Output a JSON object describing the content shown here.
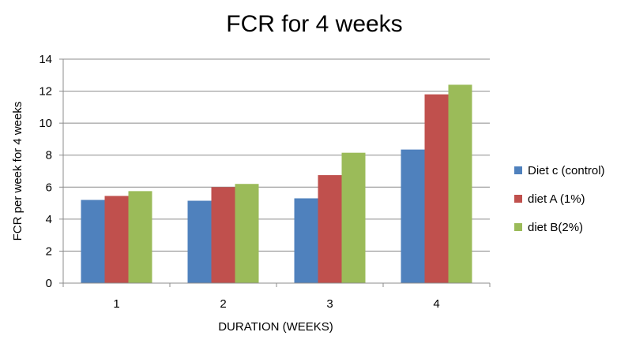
{
  "chart_data": {
    "type": "bar",
    "title": "FCR for 4 weeks",
    "xlabel": "DURATION (WEEKS)",
    "ylabel": "FCR per  week for 4 weeks",
    "categories": [
      "1",
      "2",
      "3",
      "4"
    ],
    "ylim": [
      0,
      14
    ],
    "ytick_step": 2,
    "grid": true,
    "legend_position": "right",
    "series": [
      {
        "name": "Diet c (control)",
        "color": "#4f81bd",
        "values": [
          5.2,
          5.15,
          5.3,
          8.35
        ]
      },
      {
        "name": "diet A (1%)",
        "color": "#c0504d",
        "values": [
          5.45,
          6.0,
          6.75,
          11.8
        ]
      },
      {
        "name": "diet B(2%)",
        "color": "#9bbb59",
        "values": [
          5.75,
          6.2,
          8.15,
          12.4
        ]
      }
    ]
  }
}
